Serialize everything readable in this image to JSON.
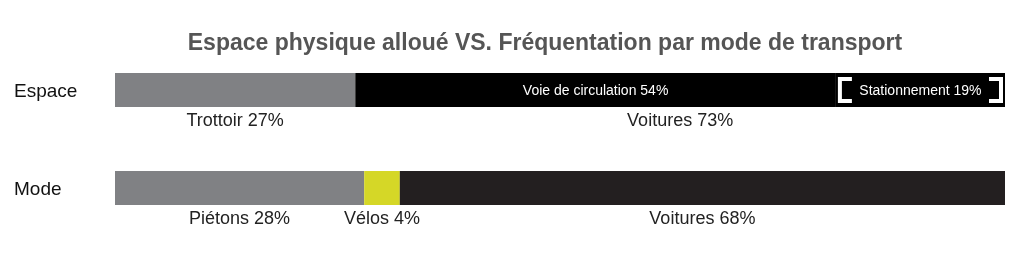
{
  "chart_data": {
    "type": "bar",
    "orientation": "horizontal",
    "stacked": true,
    "title": "Espace physique alloué VS. Fréquentation par mode de transport",
    "categories": [
      "Espace",
      "Mode"
    ],
    "series": [
      {
        "colors": [
          "#808184",
          "#808184"
        ],
        "values": [
          27,
          28
        ],
        "value_labels": [
          null,
          "Piétons 28%"
        ]
      },
      {
        "colors": [
          "#000000",
          "#d5d727"
        ],
        "values": [
          54,
          4
        ],
        "value_labels": [
          "Voie de circulation 54%",
          "Vélos 4%"
        ]
      },
      {
        "colors": [
          "#000000",
          "#231f20"
        ],
        "values": [
          19,
          68
        ],
        "value_labels": [
          "Stationnement 19%",
          "Voitures 68%"
        ]
      }
    ],
    "annotations": [
      "Trottoir 27%",
      "Voitures 73%"
    ]
  }
}
